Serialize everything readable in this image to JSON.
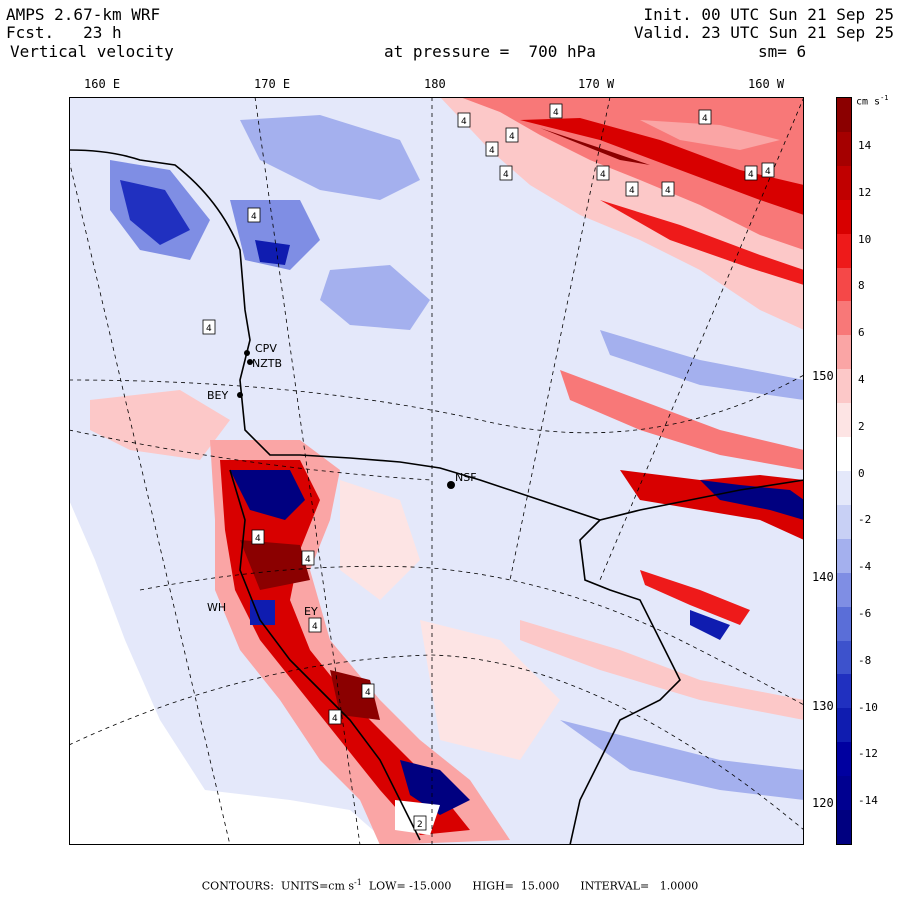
{
  "header": {
    "model": "AMPS 2.67-km WRF",
    "fcst_label": "Fcst.",
    "fcst_value": "23 h",
    "variable": "Vertical velocity",
    "init": "Init. 00 UTC Sun 21 Sep 25",
    "valid": "Valid. 23 UTC Sun 21 Sep 25",
    "pressure": "at pressure =  700 hPa",
    "smoothing": "sm= 6"
  },
  "map": {
    "lon_labels": [
      "160 E",
      "170 E",
      "180",
      "170 W",
      "160 W"
    ],
    "lat_labels": [
      "150 W",
      "140 W",
      "130 W",
      "120 W"
    ],
    "stations": [
      "CPV",
      "NZTB",
      "BEY",
      "NSF",
      "WH",
      "EY"
    ],
    "high_low_marks": [
      "4",
      "4",
      "4",
      "4",
      "4",
      "4",
      "4",
      "4",
      "4",
      "4",
      "4",
      "4",
      "4",
      "4",
      "4",
      "4",
      "4",
      "4",
      "2"
    ]
  },
  "colorbar": {
    "unit": "cm s",
    "unit_exp": "-1",
    "ticks": [
      "14",
      "12",
      "10",
      "8",
      "6",
      "4",
      "2",
      "0",
      "-2",
      "-4",
      "-6",
      "-8",
      "-10",
      "-12",
      "-14"
    ],
    "colors_top_to_bottom": [
      "#8b0000",
      "#a50000",
      "#c00000",
      "#d80000",
      "#ee1a1a",
      "#f54848",
      "#f87878",
      "#faa5a5",
      "#fcc8c8",
      "#fde4e4",
      "#ffffff",
      "#e4e8fa",
      "#c8d0f5",
      "#a4b0ee",
      "#7f8ee4",
      "#5a6ed8",
      "#3d52cc",
      "#2030c0",
      "#0f1cb0",
      "#0000a0",
      "#000090",
      "#000080"
    ]
  },
  "footer": {
    "text": "CONTOURS:  UNITS=cm s",
    "exp": "-1",
    "rest": "  LOW= -15.000      HIGH=  15.000      INTERVAL=   1.0000"
  }
}
